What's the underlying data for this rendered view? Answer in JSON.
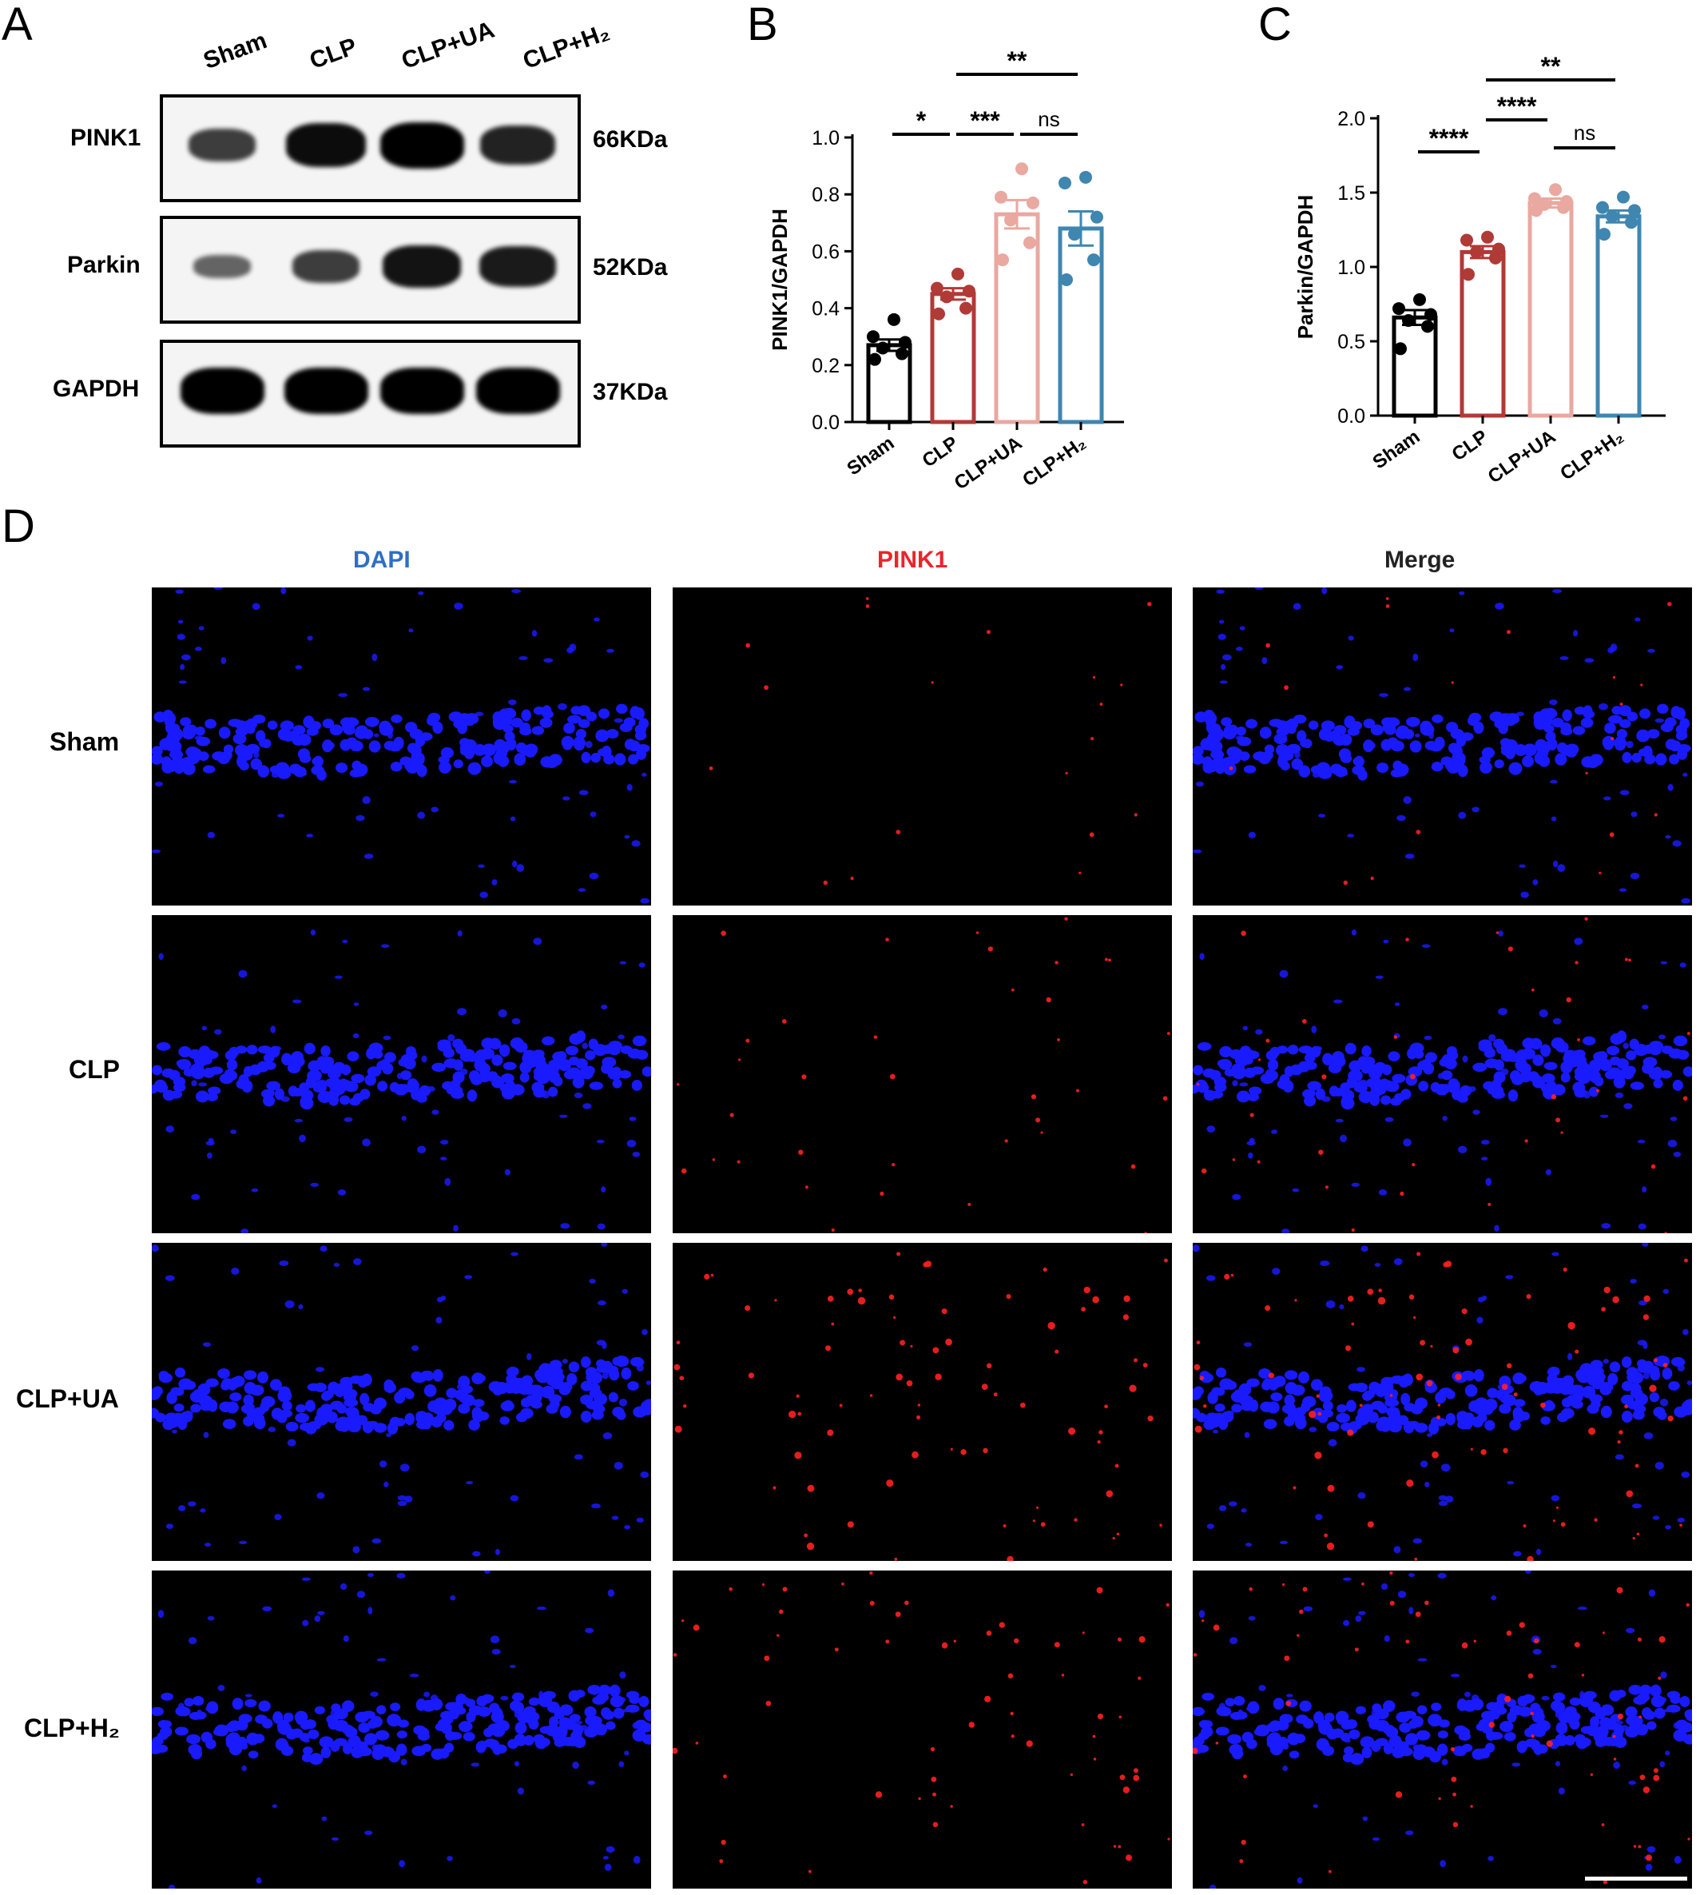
{
  "panels": {
    "A": "A",
    "B": "B",
    "C": "C",
    "D": "D"
  },
  "western": {
    "lanes": [
      "Sham",
      "CLP",
      "CLP+UA",
      "CLP+H₂"
    ],
    "rows": [
      {
        "protein": "PINK1",
        "size": "66KDa",
        "intensities": [
          0.55,
          0.9,
          1.0,
          0.75
        ]
      },
      {
        "protein": "Parkin",
        "size": "52KDa",
        "intensities": [
          0.25,
          0.55,
          0.85,
          0.8
        ]
      },
      {
        "protein": "GAPDH",
        "size": "37KDa",
        "intensities": [
          1.0,
          1.0,
          1.0,
          1.0
        ]
      }
    ]
  },
  "chart_data": [
    {
      "type": "bar",
      "panel": "B",
      "categories": [
        "Sham",
        "CLP",
        "CLP+UA",
        "CLP+H₂"
      ],
      "values": [
        0.27,
        0.45,
        0.73,
        0.68
      ],
      "errors": [
        0.02,
        0.02,
        0.05,
        0.06
      ],
      "points": [
        [
          0.22,
          0.24,
          0.26,
          0.28,
          0.3,
          0.36
        ],
        [
          0.38,
          0.4,
          0.44,
          0.46,
          0.47,
          0.52
        ],
        [
          0.57,
          0.63,
          0.71,
          0.77,
          0.79,
          0.89
        ],
        [
          0.5,
          0.57,
          0.66,
          0.72,
          0.84,
          0.86
        ]
      ],
      "colors": [
        "#000000",
        "#b03a36",
        "#e9a8a0",
        "#3f86b0"
      ],
      "xlabel": "",
      "ylabel": "PINK1/GAPDH",
      "ylim": [
        0,
        1.0
      ],
      "yticks": [
        "0.0",
        "0.2",
        "0.4",
        "0.6",
        "0.8",
        "1.0"
      ],
      "significance": [
        {
          "from": 0,
          "to": 1,
          "label": "*"
        },
        {
          "from": 1,
          "to": 2,
          "label": "***"
        },
        {
          "from": 2,
          "to": 3,
          "label": "ns"
        },
        {
          "from": 1,
          "to": 3,
          "label": "**"
        }
      ]
    },
    {
      "type": "bar",
      "panel": "C",
      "categories": [
        "Sham",
        "CLP",
        "CLP+UA",
        "CLP+H₂"
      ],
      "values": [
        0.66,
        1.1,
        1.43,
        1.34
      ],
      "errors": [
        0.05,
        0.04,
        0.03,
        0.04
      ],
      "points": [
        [
          0.45,
          0.6,
          0.64,
          0.68,
          0.72,
          0.78
        ],
        [
          0.95,
          1.06,
          1.1,
          1.12,
          1.18,
          1.2
        ],
        [
          1.38,
          1.4,
          1.42,
          1.44,
          1.46,
          1.52
        ],
        [
          1.22,
          1.3,
          1.34,
          1.38,
          1.4,
          1.47
        ]
      ],
      "colors": [
        "#000000",
        "#b03a36",
        "#e9a8a0",
        "#3f86b0"
      ],
      "xlabel": "",
      "ylabel": "Parkin/GAPDH",
      "ylim": [
        0,
        2.0
      ],
      "yticks": [
        "0.0",
        "0.5",
        "1.0",
        "1.5",
        "2.0"
      ],
      "significance": [
        {
          "from": 0,
          "to": 1,
          "label": "****"
        },
        {
          "from": 1,
          "to": 2,
          "label": "****"
        },
        {
          "from": 2,
          "to": 3,
          "label": "ns"
        },
        {
          "from": 1,
          "to": 3,
          "label": "**"
        }
      ]
    }
  ],
  "immuno": {
    "columns": [
      {
        "label": "DAPI",
        "color": "#2f6fc2"
      },
      {
        "label": "PINK1",
        "color": "#e8262c"
      },
      {
        "label": "Merge",
        "color": "#222222"
      }
    ],
    "rows": [
      "Sham",
      "CLP",
      "CLP+UA",
      "CLP+H₂"
    ],
    "pink1_level": [
      0.1,
      0.3,
      0.8,
      0.6
    ]
  }
}
